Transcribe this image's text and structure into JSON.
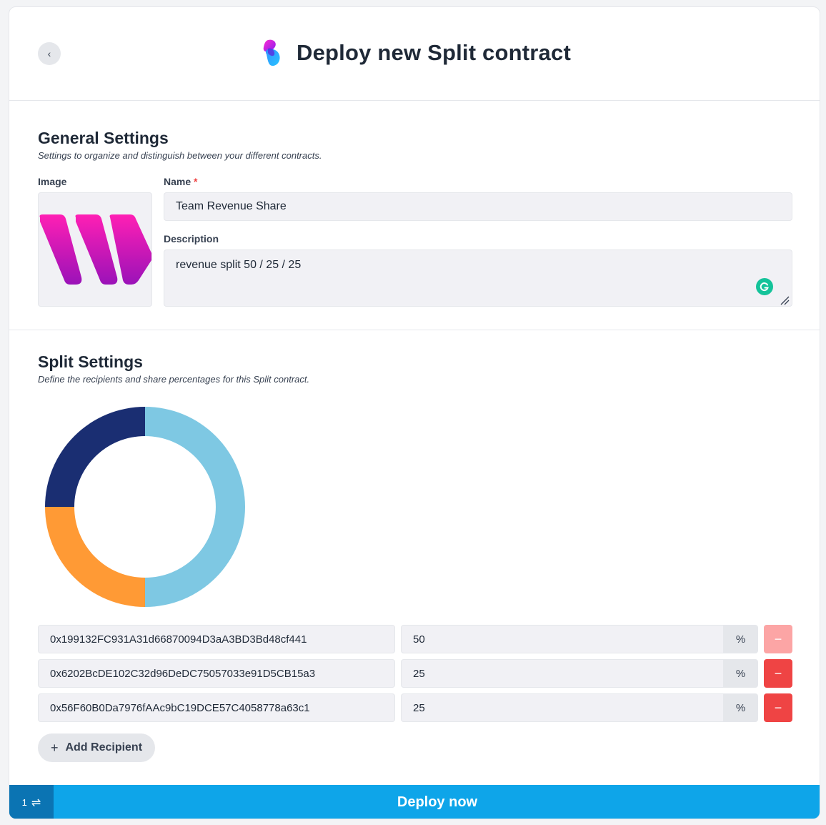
{
  "header": {
    "back_label": "‹",
    "title": "Deploy new Split contract"
  },
  "general": {
    "title": "General Settings",
    "subtitle": "Settings to organize and distinguish between your different contracts.",
    "image_label": "Image",
    "name_label": "Name",
    "required_mark": "*",
    "name_value": "Team Revenue Share",
    "description_label": "Description",
    "description_value": "revenue split 50 / 25 / 25"
  },
  "split": {
    "title": "Split Settings",
    "subtitle": "Define the recipients and share percentages for this Split contract.",
    "percent_symbol": "%",
    "remove_symbol": "−",
    "recipients": [
      {
        "address": "0x199132FC931A31d66870094D3aA3BD3Bd48cf441",
        "share": "50"
      },
      {
        "address": "0x6202BcDE102C32d96DeDC75057033e91D5CB15a3",
        "share": "25"
      },
      {
        "address": "0x56F60B0Da7976fAAc9bC19DCE57C4058778a63c1",
        "share": "25"
      }
    ],
    "add_label": "Add Recipient",
    "add_icon": "+"
  },
  "chart_data": {
    "type": "pie",
    "values": [
      50,
      25,
      25
    ],
    "colors": [
      "#7ec8e3",
      "#ff9a35",
      "#1a2e72"
    ]
  },
  "footer": {
    "tx_count": "1",
    "tx_icon": "⇌",
    "deploy_label": "Deploy now"
  },
  "colors": {
    "accent": "#0ea5e9",
    "danger": "#ef4444",
    "danger_disabled": "#fca5a5"
  }
}
